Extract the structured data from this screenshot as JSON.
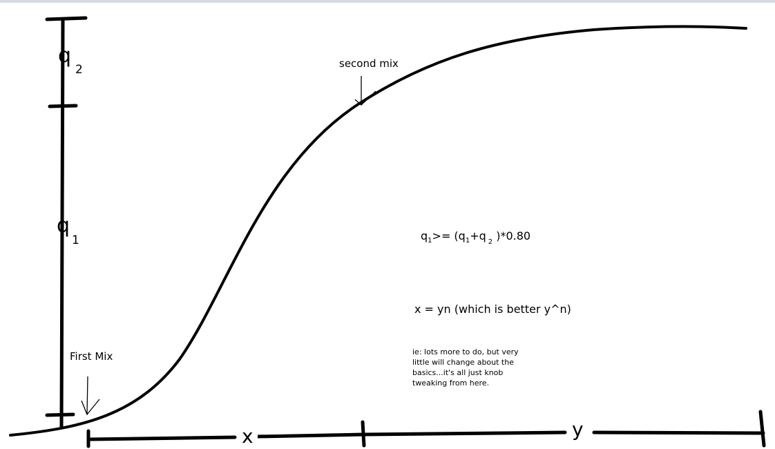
{
  "axis": {
    "q2_label": "q",
    "q2_sub": "2",
    "q1_label": "q",
    "q1_sub": "1",
    "x_label": "x",
    "y_label": "y"
  },
  "annotations": {
    "first_mix": "First Mix",
    "second_mix": "second mix"
  },
  "equation1": {
    "q": "q",
    "sub1": "1",
    "op": ">= (q",
    "sub2": "1",
    "plus": "+q",
    "sub3": "2",
    "tail": " )*0.80"
  },
  "equation2": "x = yn (which is better y^n)",
  "note": "ie: lots more to do, but very little will change about the basics...it's all just knob tweaking from here.",
  "stroke_color": "#000000"
}
